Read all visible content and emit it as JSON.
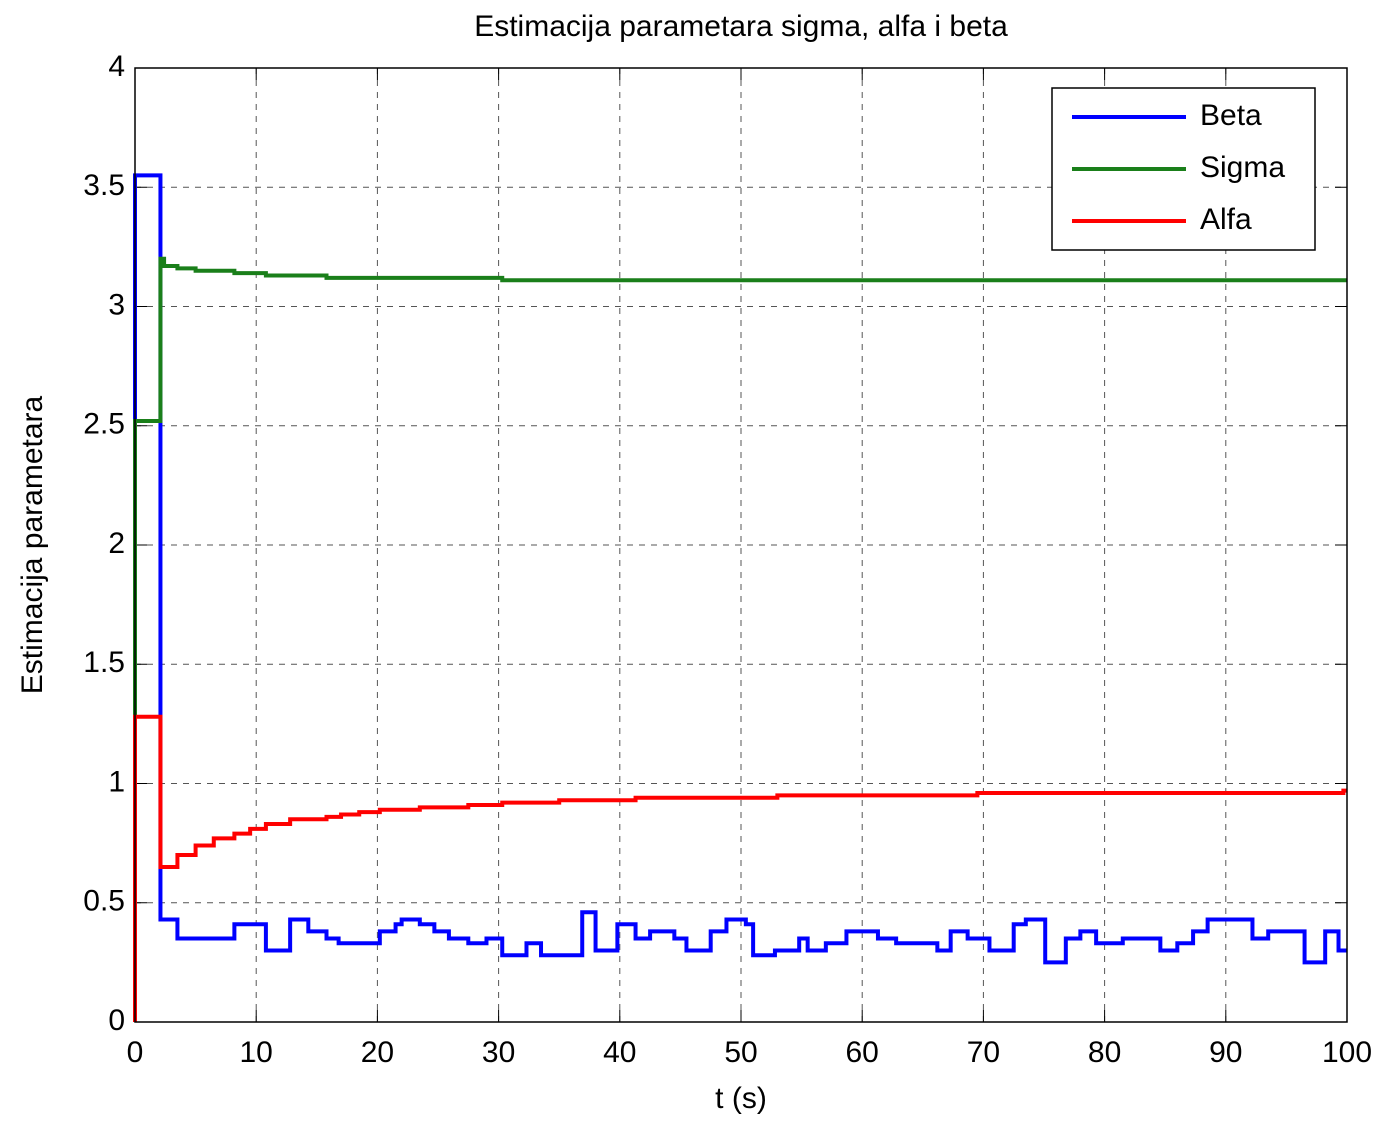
{
  "chart_data": {
    "type": "line",
    "title": "Estimacija parametara sigma, alfa i beta",
    "xlabel": "t (s)",
    "ylabel": "Estimacija parametara",
    "xlim": [
      0,
      100
    ],
    "xticks": [
      0,
      10,
      20,
      30,
      40,
      50,
      60,
      70,
      80,
      90,
      100
    ],
    "ylim": [
      0,
      4
    ],
    "yticks": [
      0,
      0.5,
      1,
      1.5,
      2,
      2.5,
      3,
      3.5,
      4
    ],
    "grid": true,
    "legend": "northeast",
    "series": [
      {
        "name": "Beta",
        "color": "#0000ff",
        "x": [
          0,
          0,
          2.1,
          2.1,
          3.5,
          3.5,
          8.2,
          8.2,
          10.8,
          10.8,
          12.8,
          12.8,
          14.3,
          14.3,
          15.8,
          15.8,
          16.8,
          16.8,
          20.2,
          20.2,
          21.5,
          21.5,
          22,
          22,
          23.5,
          23.5,
          24.7,
          24.7,
          25.9,
          25.9,
          27.5,
          27.5,
          29,
          29,
          30.3,
          30.3,
          32.3,
          32.3,
          33.5,
          33.5,
          36.9,
          36.9,
          38,
          38,
          39.8,
          39.8,
          41.3,
          41.3,
          42.5,
          42.5,
          44.5,
          44.5,
          45.5,
          45.5,
          47.5,
          47.5,
          48.8,
          48.8,
          50.4,
          50.4,
          51,
          51,
          52.8,
          52.8,
          54.8,
          54.8,
          55.5,
          55.5,
          57,
          57,
          58.7,
          58.7,
          61.3,
          61.3,
          62.8,
          62.8,
          66.2,
          66.2,
          67.3,
          67.3,
          68.7,
          68.7,
          70.5,
          70.5,
          72.5,
          72.5,
          73.5,
          73.5,
          75.1,
          75.1,
          76.8,
          76.8,
          78,
          78,
          79.3,
          79.3,
          81.5,
          81.5,
          84.6,
          84.6,
          86,
          86,
          87.3,
          87.3,
          88.5,
          88.5,
          92.2,
          92.2,
          93.5,
          93.5,
          96.5,
          96.5,
          98.2,
          98.2,
          99.3,
          99.3,
          100
        ],
        "values": [
          0,
          3.55,
          3.55,
          0.43,
          0.43,
          0.35,
          0.35,
          0.41,
          0.41,
          0.3,
          0.3,
          0.43,
          0.43,
          0.38,
          0.38,
          0.35,
          0.35,
          0.33,
          0.33,
          0.38,
          0.38,
          0.41,
          0.41,
          0.43,
          0.43,
          0.41,
          0.41,
          0.38,
          0.38,
          0.35,
          0.35,
          0.33,
          0.33,
          0.35,
          0.35,
          0.28,
          0.28,
          0.33,
          0.33,
          0.28,
          0.28,
          0.46,
          0.46,
          0.3,
          0.3,
          0.41,
          0.41,
          0.35,
          0.35,
          0.38,
          0.38,
          0.35,
          0.35,
          0.3,
          0.3,
          0.38,
          0.38,
          0.43,
          0.43,
          0.41,
          0.41,
          0.28,
          0.28,
          0.3,
          0.3,
          0.35,
          0.35,
          0.3,
          0.3,
          0.33,
          0.33,
          0.38,
          0.38,
          0.35,
          0.35,
          0.33,
          0.33,
          0.3,
          0.3,
          0.38,
          0.38,
          0.35,
          0.35,
          0.3,
          0.3,
          0.41,
          0.41,
          0.43,
          0.43,
          0.25,
          0.25,
          0.35,
          0.35,
          0.38,
          0.38,
          0.33,
          0.33,
          0.35,
          0.35,
          0.3,
          0.3,
          0.33,
          0.33,
          0.38,
          0.38,
          0.43,
          0.43,
          0.35,
          0.35,
          0.38,
          0.38,
          0.25,
          0.25,
          0.38,
          0.38,
          0.3,
          0.3
        ]
      },
      {
        "name": "Sigma",
        "color": "#1a7f1a",
        "x": [
          0,
          0,
          2.1,
          2.1,
          2.4,
          2.4,
          3.5,
          3.5,
          5,
          5,
          8.2,
          8.2,
          10.8,
          10.8,
          15.8,
          15.8,
          30.3,
          30.3,
          100
        ],
        "values": [
          0,
          2.52,
          2.52,
          3.2,
          3.2,
          3.17,
          3.17,
          3.16,
          3.16,
          3.15,
          3.15,
          3.14,
          3.14,
          3.13,
          3.13,
          3.12,
          3.12,
          3.11,
          3.11
        ]
      },
      {
        "name": "Alfa",
        "color": "#ff0000",
        "x": [
          0,
          0,
          2.1,
          2.1,
          3.5,
          3.5,
          5,
          5,
          6.5,
          6.5,
          8.2,
          8.2,
          9.5,
          9.5,
          10.8,
          10.8,
          12.8,
          12.8,
          15.8,
          15.8,
          17,
          17,
          18.5,
          18.5,
          20.2,
          20.2,
          23.5,
          23.5,
          27.5,
          27.5,
          30.3,
          30.3,
          35,
          35,
          41.3,
          41.3,
          53,
          53,
          69.5,
          69.5,
          99.7,
          99.7,
          100
        ],
        "values": [
          0,
          1.28,
          1.28,
          0.65,
          0.65,
          0.7,
          0.7,
          0.74,
          0.74,
          0.77,
          0.77,
          0.79,
          0.79,
          0.81,
          0.81,
          0.83,
          0.83,
          0.85,
          0.85,
          0.86,
          0.86,
          0.87,
          0.87,
          0.88,
          0.88,
          0.89,
          0.89,
          0.9,
          0.9,
          0.91,
          0.91,
          0.92,
          0.92,
          0.93,
          0.93,
          0.94,
          0.94,
          0.95,
          0.95,
          0.96,
          0.96,
          0.97,
          0.97
        ]
      }
    ]
  }
}
